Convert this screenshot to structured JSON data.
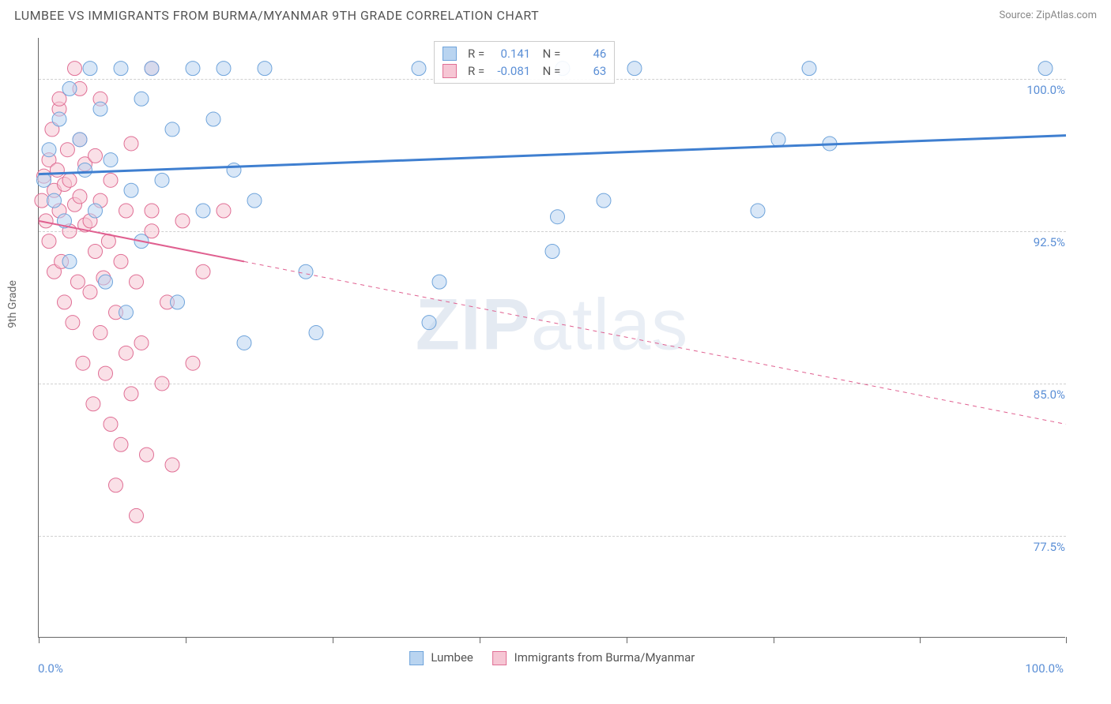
{
  "header": {
    "title": "LUMBEE VS IMMIGRANTS FROM BURMA/MYANMAR 9TH GRADE CORRELATION CHART",
    "source": "Source: ZipAtlas.com"
  },
  "watermark": {
    "prefix": "ZIP",
    "suffix": "atlas"
  },
  "chart": {
    "type": "scatter",
    "ylabel": "9th Grade",
    "xlim": [
      0,
      100
    ],
    "ylim": [
      72.5,
      102
    ],
    "xticks_label_left": "0.0%",
    "xticks_label_right": "100.0%",
    "xtick_positions": [
      0,
      14.3,
      28.6,
      42.9,
      57.2,
      71.5,
      85.8,
      100
    ],
    "yticks": [
      {
        "v": 100.0,
        "label": "100.0%"
      },
      {
        "v": 92.5,
        "label": "92.5%"
      },
      {
        "v": 85.0,
        "label": "85.0%"
      },
      {
        "v": 77.5,
        "label": "77.5%"
      }
    ],
    "grid_color": "#d0d0d0",
    "background_color": "#ffffff",
    "point_radius": 9,
    "point_opacity": 0.55,
    "series": [
      {
        "name": "Lumbee",
        "color_fill": "#b9d4f0",
        "color_stroke": "#6fa4db",
        "R": "0.141",
        "N": "46",
        "trend": {
          "y_at_x0": 95.3,
          "y_at_x100": 97.2,
          "solid_until_x": 100,
          "stroke": "#3f7fd0",
          "width": 3
        },
        "points": [
          [
            0.5,
            95.0
          ],
          [
            1.0,
            96.5
          ],
          [
            1.5,
            94.0
          ],
          [
            2.0,
            98.0
          ],
          [
            2.5,
            93.0
          ],
          [
            3.0,
            99.5
          ],
          [
            3.0,
            91.0
          ],
          [
            4.0,
            97.0
          ],
          [
            4.5,
            95.5
          ],
          [
            5.0,
            100.5
          ],
          [
            5.5,
            93.5
          ],
          [
            6.0,
            98.5
          ],
          [
            6.5,
            90.0
          ],
          [
            7.0,
            96.0
          ],
          [
            8.0,
            100.5
          ],
          [
            8.5,
            88.5
          ],
          [
            9.0,
            94.5
          ],
          [
            10.0,
            99.0
          ],
          [
            10.0,
            92.0
          ],
          [
            11.0,
            100.5
          ],
          [
            12.0,
            95.0
          ],
          [
            13.0,
            97.5
          ],
          [
            13.5,
            89.0
          ],
          [
            15.0,
            100.5
          ],
          [
            16.0,
            93.5
          ],
          [
            17.0,
            98.0
          ],
          [
            18.0,
            100.5
          ],
          [
            19.0,
            95.5
          ],
          [
            20.0,
            87.0
          ],
          [
            21.0,
            94.0
          ],
          [
            22.0,
            100.5
          ],
          [
            26.0,
            90.5
          ],
          [
            27.0,
            87.5
          ],
          [
            37.0,
            100.5
          ],
          [
            38.0,
            88.0
          ],
          [
            39.0,
            90.0
          ],
          [
            50.0,
            91.5
          ],
          [
            50.5,
            93.2
          ],
          [
            51.0,
            100.5
          ],
          [
            55.0,
            94.0
          ],
          [
            58.0,
            100.5
          ],
          [
            70.0,
            93.5
          ],
          [
            72.0,
            97.0
          ],
          [
            75.0,
            100.5
          ],
          [
            77.0,
            96.8
          ],
          [
            98.0,
            100.5
          ]
        ]
      },
      {
        "name": "Immigrants from Burma/Myanmar",
        "color_fill": "#f6c6d4",
        "color_stroke": "#e06f95",
        "R": "-0.081",
        "N": "63",
        "trend": {
          "y_at_x0": 93.0,
          "y_at_x100": 83.0,
          "solid_until_x": 20,
          "stroke": "#e06090",
          "width": 2
        },
        "points": [
          [
            0.3,
            94.0
          ],
          [
            0.5,
            95.2
          ],
          [
            0.7,
            93.0
          ],
          [
            1.0,
            96.0
          ],
          [
            1.0,
            92.0
          ],
          [
            1.3,
            97.5
          ],
          [
            1.5,
            90.5
          ],
          [
            1.5,
            94.5
          ],
          [
            1.8,
            95.5
          ],
          [
            2.0,
            93.5
          ],
          [
            2.0,
            98.5
          ],
          [
            2.2,
            91.0
          ],
          [
            2.5,
            94.8
          ],
          [
            2.5,
            89.0
          ],
          [
            2.8,
            96.5
          ],
          [
            3.0,
            92.5
          ],
          [
            3.0,
            95.0
          ],
          [
            3.3,
            88.0
          ],
          [
            3.5,
            93.8
          ],
          [
            3.5,
            100.5
          ],
          [
            3.8,
            90.0
          ],
          [
            4.0,
            94.2
          ],
          [
            4.0,
            97.0
          ],
          [
            4.3,
            86.0
          ],
          [
            4.5,
            92.8
          ],
          [
            4.5,
            95.8
          ],
          [
            5.0,
            89.5
          ],
          [
            5.0,
            93.0
          ],
          [
            5.3,
            84.0
          ],
          [
            5.5,
            91.5
          ],
          [
            5.5,
            96.2
          ],
          [
            6.0,
            87.5
          ],
          [
            6.0,
            94.0
          ],
          [
            6.3,
            90.2
          ],
          [
            6.5,
            85.5
          ],
          [
            6.8,
            92.0
          ],
          [
            7.0,
            83.0
          ],
          [
            7.0,
            95.0
          ],
          [
            7.5,
            88.5
          ],
          [
            7.5,
            80.0
          ],
          [
            8.0,
            91.0
          ],
          [
            8.0,
            82.0
          ],
          [
            8.5,
            86.5
          ],
          [
            8.5,
            93.5
          ],
          [
            9.0,
            84.5
          ],
          [
            9.0,
            96.8
          ],
          [
            9.5,
            78.5
          ],
          [
            9.5,
            90.0
          ],
          [
            10.0,
            87.0
          ],
          [
            10.5,
            81.5
          ],
          [
            11.0,
            92.5
          ],
          [
            11.0,
            100.5
          ],
          [
            12.0,
            85.0
          ],
          [
            12.5,
            89.0
          ],
          [
            13.0,
            81.0
          ],
          [
            14.0,
            93.0
          ],
          [
            15.0,
            86.0
          ],
          [
            16.0,
            90.5
          ],
          [
            18.0,
            93.5
          ],
          [
            11.0,
            93.5
          ],
          [
            6.0,
            99.0
          ],
          [
            4.0,
            99.5
          ],
          [
            2.0,
            99.0
          ]
        ]
      }
    ],
    "legend_bottom": [
      {
        "label": "Lumbee",
        "fill": "#b9d4f0",
        "stroke": "#6fa4db"
      },
      {
        "label": "Immigrants from Burma/Myanmar",
        "fill": "#f6c6d4",
        "stroke": "#e06f95"
      }
    ]
  }
}
